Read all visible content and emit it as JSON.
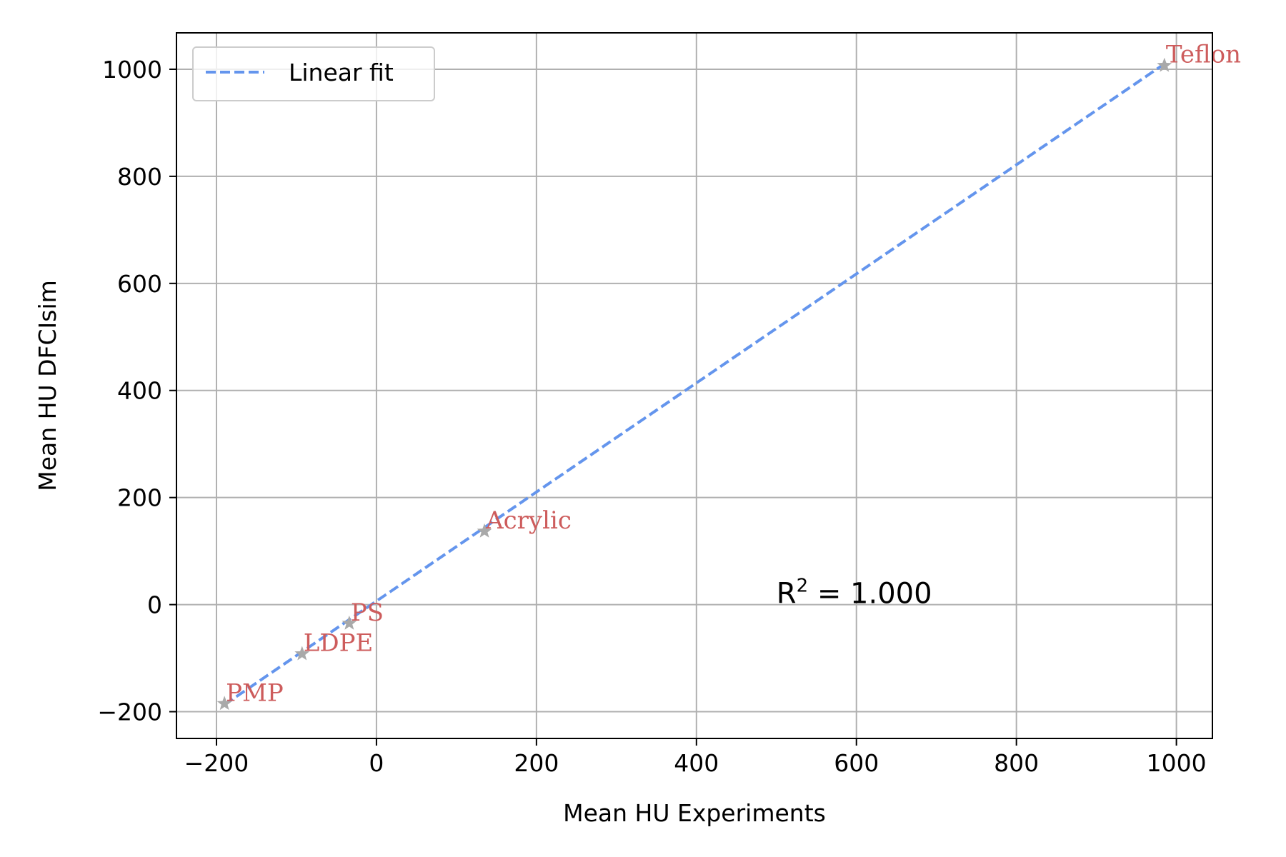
{
  "chart_data": {
    "type": "scatter",
    "title": "",
    "xlabel": "Mean HU Experiments",
    "ylabel": "Mean HU DFCIsim",
    "xlim": [
      -250,
      1045
    ],
    "ylim": [
      -250,
      1068
    ],
    "xticks": [
      -200,
      0,
      200,
      400,
      600,
      800,
      1000
    ],
    "yticks": [
      -200,
      0,
      200,
      400,
      600,
      800,
      1000
    ],
    "xtick_labels": [
      "−200",
      "0",
      "200",
      "400",
      "600",
      "800",
      "1000"
    ],
    "ytick_labels": [
      "−200",
      "0",
      "200",
      "400",
      "600",
      "800",
      "1000"
    ],
    "grid": true,
    "legend": {
      "placement": "top-left",
      "entries": [
        "Linear fit"
      ]
    },
    "points": [
      {
        "label": "PMP",
        "x": -190,
        "y": -185
      },
      {
        "label": "LDPE",
        "x": -93,
        "y": -92
      },
      {
        "label": "PS",
        "x": -34,
        "y": -35
      },
      {
        "label": "Acrylic",
        "x": 135,
        "y": 137
      },
      {
        "label": "Teflon",
        "x": 985,
        "y": 1007
      }
    ],
    "fit_line": {
      "name": "Linear fit",
      "x": [
        -190,
        985
      ],
      "y": [
        -187,
        1010
      ],
      "style": "dashed"
    },
    "annotations": [
      {
        "text_main": "R",
        "text_sup": "2",
        "text_rest": " = 1.000",
        "x": 500,
        "y": 0
      }
    ],
    "colors": {
      "fit_line": "#6495ED",
      "marker": "#A9A9A9",
      "point_label": "#CD5C5C",
      "grid": "#b0b0b0",
      "axes": "#000000"
    }
  }
}
